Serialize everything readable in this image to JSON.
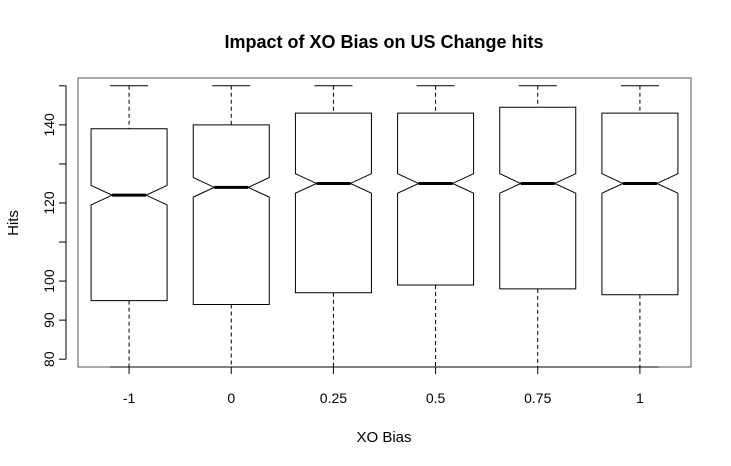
{
  "chart_data": {
    "type": "boxplot",
    "notched": true,
    "title": "Impact of XO Bias on US Change hits",
    "xlabel": "XO Bias",
    "ylabel": "Hits",
    "categories": [
      "-1",
      "0",
      "0.25",
      "0.5",
      "0.75",
      "1"
    ],
    "boxes": [
      {
        "min": 78,
        "q1": 95,
        "median": 122,
        "q3": 139,
        "max": 150,
        "notch_lower": 119.5,
        "notch_upper": 124.5
      },
      {
        "min": 78,
        "q1": 94,
        "median": 124,
        "q3": 140,
        "max": 150,
        "notch_lower": 121.5,
        "notch_upper": 126.5
      },
      {
        "min": 78,
        "q1": 97,
        "median": 125,
        "q3": 143,
        "max": 150,
        "notch_lower": 122.5,
        "notch_upper": 127.5
      },
      {
        "min": 78,
        "q1": 99,
        "median": 125,
        "q3": 143,
        "max": 150,
        "notch_lower": 122.5,
        "notch_upper": 127.5
      },
      {
        "min": 78,
        "q1": 98,
        "median": 125,
        "q3": 144.5,
        "max": 150,
        "notch_lower": 122.5,
        "notch_upper": 127.5
      },
      {
        "min": 78,
        "q1": 96.5,
        "median": 125,
        "q3": 143,
        "max": 150,
        "notch_lower": 122.5,
        "notch_upper": 127.5
      }
    ],
    "y_ticks": [
      80,
      90,
      100,
      110,
      120,
      130,
      140,
      150
    ],
    "y_tick_labels": [
      "80",
      "90",
      "100",
      "",
      "120",
      "",
      "140",
      ""
    ],
    "ylim": [
      78,
      152
    ],
    "grid": false,
    "legend": "none"
  }
}
